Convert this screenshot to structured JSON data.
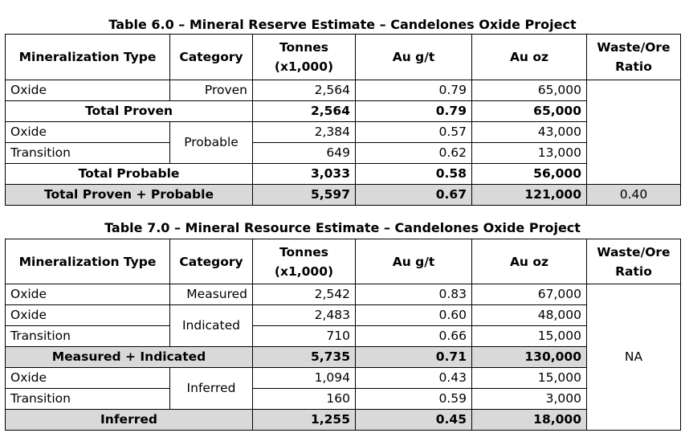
{
  "table1": {
    "caption": "Table 6.0 – Mineral Reserve Estimate – Candelones Oxide Project",
    "headers": {
      "type": "Mineralization Type",
      "category": "Category",
      "tonnes_l1": "Tonnes",
      "tonnes_l2": "(x1,000)",
      "grade": "Au g/t",
      "au_oz": "Au oz",
      "ratio_l1": "Waste/Ore",
      "ratio_l2": "Ratio"
    },
    "rows": [
      {
        "type": "Oxide",
        "category": "Proven",
        "tonnes": "2,564",
        "grade": "0.79",
        "oz": "65,000"
      },
      {
        "label": "Total Proven",
        "tonnes": "2,564",
        "grade": "0.79",
        "oz": "65,000"
      },
      {
        "type": "Oxide",
        "category": "Probable",
        "tonnes": "2,384",
        "grade": "0.57",
        "oz": "43,000"
      },
      {
        "type": "Transition",
        "tonnes": "649",
        "grade": "0.62",
        "oz": "13,000"
      },
      {
        "label": "Total Probable",
        "tonnes": "3,033",
        "grade": "0.58",
        "oz": "56,000"
      },
      {
        "label": "Total Proven + Probable",
        "tonnes": "5,597",
        "grade": "0.67",
        "oz": "121,000",
        "ratio": "0.40"
      }
    ]
  },
  "table2": {
    "caption": "Table 7.0 – Mineral Resource Estimate – Candelones Oxide Project",
    "headers": {
      "type": "Mineralization Type",
      "category": "Category",
      "tonnes_l1": "Tonnes",
      "tonnes_l2": "(x1,000)",
      "grade": "Au g/t",
      "au_oz": "Au oz",
      "ratio_l1": "Waste/Ore",
      "ratio_l2": "Ratio"
    },
    "ratio": "NA",
    "rows": [
      {
        "type": "Oxide",
        "category": "Measured",
        "tonnes": "2,542",
        "grade": "0.83",
        "oz": "67,000"
      },
      {
        "type": "Oxide",
        "category": "Indicated",
        "tonnes": "2,483",
        "grade": "0.60",
        "oz": "48,000"
      },
      {
        "type": "Transition",
        "tonnes": "710",
        "grade": "0.66",
        "oz": "15,000"
      },
      {
        "label": "Measured + Indicated",
        "tonnes": "5,735",
        "grade": "0.71",
        "oz": "130,000"
      },
      {
        "type": "Oxide",
        "category": "Inferred",
        "tonnes": "1,094",
        "grade": "0.43",
        "oz": "15,000"
      },
      {
        "type": "Transition",
        "tonnes": "160",
        "grade": "0.59",
        "oz": "3,000"
      },
      {
        "label": "Inferred",
        "tonnes": "1,255",
        "grade": "0.45",
        "oz": "18,000"
      }
    ]
  },
  "colors": {
    "highlight_row": "#d9d9d9",
    "border": "#000000"
  }
}
